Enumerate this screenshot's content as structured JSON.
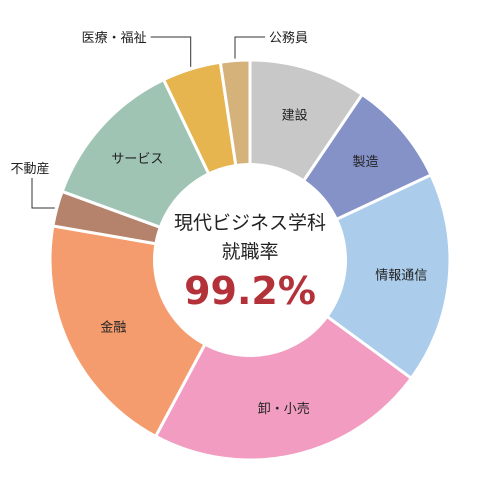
{
  "chart_data": {
    "type": "pie",
    "donut": true,
    "center_text": {
      "line1": "現代ビジネス学科",
      "line2": "就職率",
      "rate": "99.2%",
      "rate_color": "#b3323a"
    },
    "categories": [
      "建設",
      "製造",
      "情報通信",
      "卸・小売",
      "金融",
      "不動産",
      "サービス",
      "医療・福祉",
      "公務員"
    ],
    "values": [
      10,
      9,
      18,
      24,
      21,
      3,
      13,
      5,
      2.5
    ],
    "colors": [
      "#c8c8c8",
      "#8592c8",
      "#abcdeb",
      "#f19cc0",
      "#f49c6e",
      "#b5836b",
      "#9fc4b4",
      "#e6b550",
      "#d4b27a"
    ],
    "label_style": [
      "inside",
      "inside",
      "inside",
      "inside",
      "inside",
      "outside-left",
      "inside",
      "outside-left",
      "outside-right"
    ]
  }
}
